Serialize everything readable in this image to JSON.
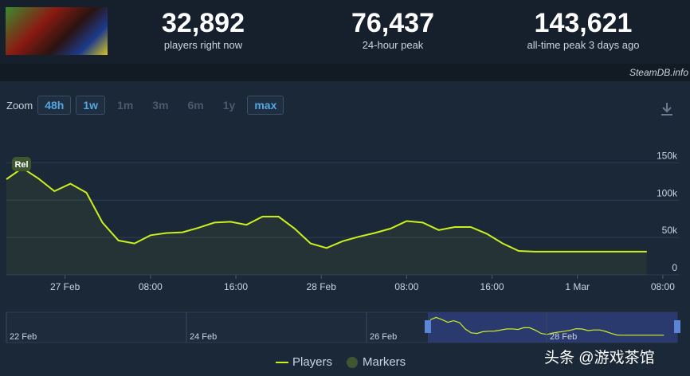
{
  "stats": {
    "current": {
      "value": "32,892",
      "label": "players right now"
    },
    "peak24": {
      "value": "76,437",
      "label": "24-hour peak"
    },
    "alltime": {
      "value": "143,621",
      "label": "all-time peak 3 days ago"
    }
  },
  "source": "SteamDB.info",
  "zoom": {
    "label": "Zoom",
    "buttons": [
      {
        "label": "48h",
        "active": true
      },
      {
        "label": "1w",
        "active": true
      },
      {
        "label": "1m",
        "active": false
      },
      {
        "label": "3m",
        "active": false
      },
      {
        "label": "6m",
        "active": false
      },
      {
        "label": "1y",
        "active": false
      },
      {
        "label": "max",
        "active": true
      }
    ]
  },
  "colors": {
    "line": "#ccf01e",
    "marker": "#3f5630",
    "nav_selection": "#2b3a6e"
  },
  "chart_data": {
    "type": "line",
    "series": [
      {
        "name": "Players",
        "x": [
          0,
          3,
          6,
          9,
          12,
          15,
          18,
          21,
          24,
          27,
          30,
          33,
          36,
          39,
          42,
          45,
          48,
          51,
          54,
          57,
          60,
          63,
          66,
          69,
          72,
          75,
          78,
          81,
          84,
          87,
          90,
          93,
          96,
          99,
          102,
          105,
          108,
          111,
          114,
          117,
          120
        ],
        "y": [
          128000,
          143000,
          129000,
          112000,
          122000,
          110000,
          70000,
          46000,
          42000,
          53000,
          56000,
          57000,
          63000,
          70000,
          71000,
          67000,
          78000,
          78000,
          62000,
          42000,
          36000,
          45000,
          51000,
          56000,
          62000,
          72000,
          70000,
          60000,
          64000,
          64000,
          55000,
          42000,
          32000,
          31000,
          31000,
          31000,
          31000,
          31000,
          31000,
          31000,
          31000
        ]
      }
    ],
    "x_ticks": [
      {
        "x": 11,
        "label": "27 Feb"
      },
      {
        "x": 27,
        "label": "08:00"
      },
      {
        "x": 43,
        "label": "16:00"
      },
      {
        "x": 59,
        "label": "28 Feb"
      },
      {
        "x": 75,
        "label": "08:00"
      },
      {
        "x": 91,
        "label": "16:00"
      },
      {
        "x": 107,
        "label": "1 Mar"
      },
      {
        "x": 123,
        "label": "08:00"
      }
    ],
    "y_ticks": [
      0,
      50000,
      100000,
      150000
    ],
    "y_tick_labels": [
      "0",
      "50k",
      "100k",
      "150k"
    ],
    "ylim": [
      0,
      160000
    ],
    "xlim": [
      0,
      126
    ],
    "marker": {
      "x": 0,
      "label": "Rel"
    },
    "navigator_ticks": [
      "22 Feb",
      "24 Feb",
      "26 Feb",
      "28 Feb"
    ],
    "legend": [
      "Players",
      "Markers"
    ],
    "grid": true
  },
  "watermark": "头条 @游戏茶馆"
}
